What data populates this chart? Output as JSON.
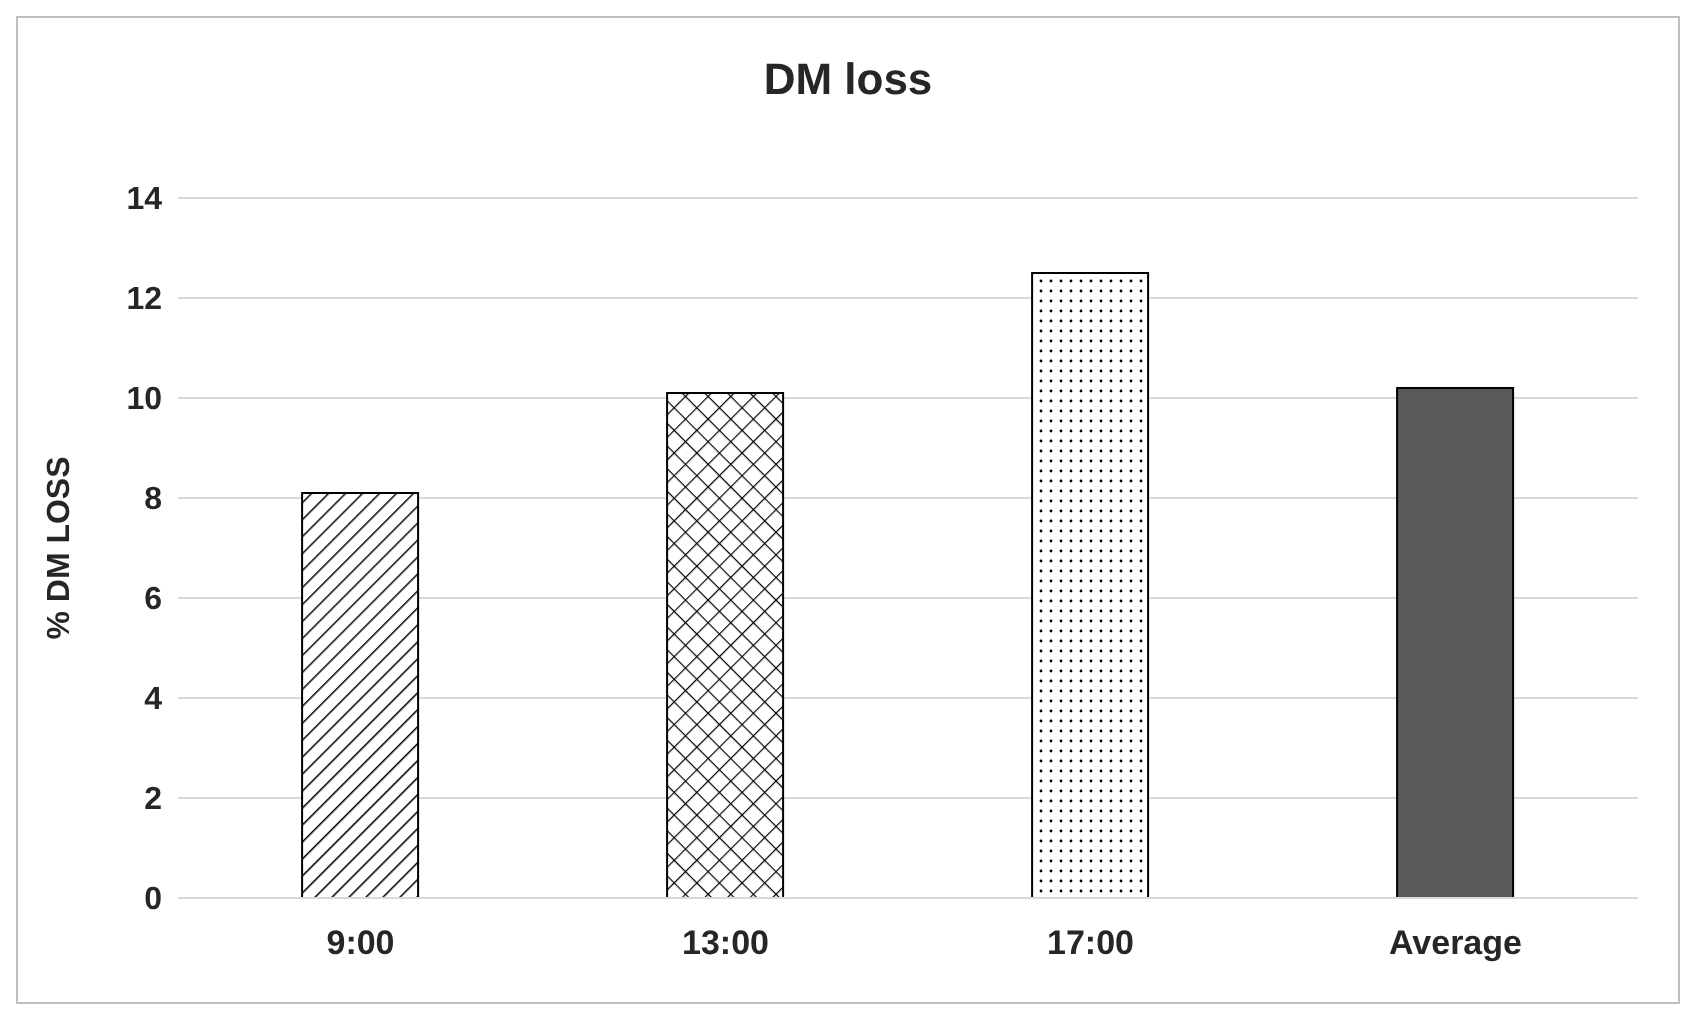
{
  "chart_data": {
    "type": "bar",
    "title": "DM loss",
    "ylabel": "% DM LOSS",
    "categories": [
      "9:00",
      "13:00",
      "17:00",
      "Average"
    ],
    "values": [
      8.1,
      10.1,
      12.5,
      10.2
    ],
    "colors": [
      "#000000",
      "#000000",
      "#000000",
      "#595959"
    ],
    "ylim": [
      0,
      14
    ],
    "yticks": [
      0,
      2,
      4,
      6,
      8,
      10,
      12,
      14
    ],
    "grid": "y"
  }
}
